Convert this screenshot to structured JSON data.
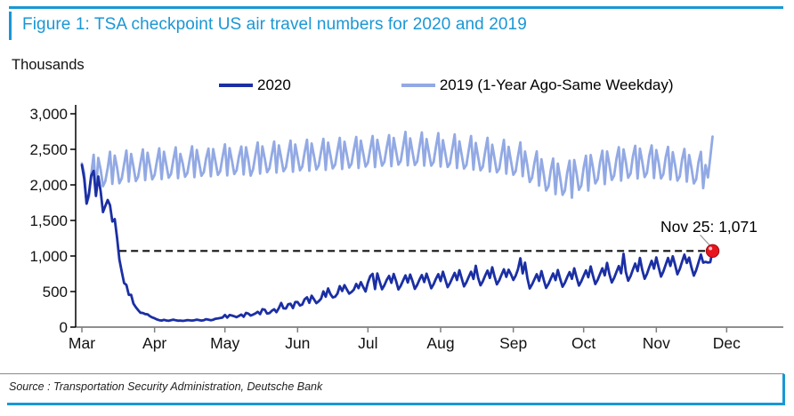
{
  "figure": {
    "title": "Figure 1: TSA checkpoint US air travel numbers for 2020 and 2019",
    "units_label": "Thousands",
    "source": "Source : Transportation Security Administration, Deutsche Bank",
    "accent_color": "#1a97d5"
  },
  "chart_data": {
    "type": "line",
    "title": "Figure 1: TSA checkpoint US air travel numbers for 2020 and 2019",
    "ylabel": "Thousands",
    "ylim": [
      0,
      3000
    ],
    "grid": false,
    "legend_position": "top",
    "y_ticks": [
      "0",
      "500",
      "1,000",
      "1,500",
      "2,000",
      "2,500",
      "3,000"
    ],
    "y_tick_values": [
      0,
      500,
      1000,
      1500,
      2000,
      2500,
      3000
    ],
    "categories": [
      "Mar",
      "Apr",
      "May",
      "Jun",
      "Jul",
      "Aug",
      "Sep",
      "Oct",
      "Nov",
      "Dec"
    ],
    "x_tick_days": [
      0,
      31,
      61,
      92,
      122,
      153,
      184,
      214,
      245,
      275
    ],
    "x_unit": "days since Mar 1, 2020 (daily values, thousands of passengers)",
    "series": [
      {
        "name": "2020",
        "color": "#1b2fa4",
        "values": [
          2280,
          2089,
          1736,
          1877,
          2130,
          2198,
          1844,
          2119,
          1909,
          1617,
          1702,
          1788,
          1714,
          1485,
          1519,
          1257,
          953,
          779,
          620,
          593,
          454,
          455,
          331,
          280,
          239,
          203,
          199,
          184,
          180,
          154,
          136,
          124,
          107,
          97,
          92,
          102,
          94,
          89,
          97,
          105,
          96,
          90,
          93,
          88,
          92,
          99,
          95,
          92,
          97,
          105,
          99,
          92,
          98,
          111,
          105,
          98,
          104,
          117,
          123,
          128,
          135,
          171,
          134,
          170,
          163,
          152,
          140,
          157,
          176,
          145,
          200,
          190,
          163,
          176,
          193,
          215,
          183,
          253,
          244,
          190,
          196,
          230,
          251,
          210,
          267,
          340,
          264,
          261,
          321,
          327,
          268,
          352,
          353,
          304,
          318,
          391,
          419,
          341,
          441,
          390,
          338,
          362,
          399,
          502,
          427,
          544,
          465,
          417,
          428,
          471,
          576,
          507,
          590,
          530,
          471,
          494,
          526,
          607,
          548,
          633,
          561,
          501,
          626,
          718,
          749,
          535,
          755,
          640,
          532,
          588,
          663,
          720,
          623,
          747,
          646,
          530,
          581,
          658,
          727,
          627,
          739,
          648,
          537,
          594,
          669,
          732,
          634,
          751,
          655,
          546,
          603,
          679,
          745,
          648,
          779,
          668,
          561,
          617,
          693,
          762,
          661,
          800,
          684,
          573,
          631,
          708,
          779,
          678,
          863,
          695,
          587,
          644,
          723,
          795,
          691,
          841,
          711,
          601,
          659,
          739,
          813,
          706,
          808,
          744,
          664,
          722,
          812,
          968,
          755,
          906,
          689,
          544,
          599,
          673,
          744,
          650,
          788,
          663,
          551,
          607,
          683,
          755,
          661,
          803,
          679,
          567,
          624,
          701,
          774,
          679,
          826,
          698,
          584,
          643,
          722,
          798,
          701,
          852,
          721,
          605,
          666,
          748,
          827,
          727,
          902,
          747,
          628,
          691,
          777,
          859,
          757,
          1031,
          775,
          653,
          718,
          808,
          894,
          788,
          973,
          806,
          680,
          748,
          842,
          932,
          823,
          980,
          840,
          710,
          781,
          879,
          973,
          860,
          996,
          878,
          743,
          818,
          921,
          1019,
          903,
          978,
          840,
          724,
          801,
          908,
          1020,
          906,
          917,
          907,
          912,
          1071
        ]
      },
      {
        "name": "2019 (1-Year Ago-Same Weekday)",
        "color": "#92a9e4",
        "values": [
          2301,
          2162,
          1736,
          1834,
          2148,
          2424,
          1902,
          2380,
          2212,
          1980,
          2052,
          2236,
          2466,
          2014,
          2413,
          2246,
          2022,
          2093,
          2287,
          2482,
          2046,
          2436,
          2258,
          2054,
          2116,
          2311,
          2499,
          2067,
          2452,
          2273,
          2078,
          2140,
          2336,
          2514,
          2081,
          2466,
          2286,
          2101,
          2153,
          2350,
          2528,
          2094,
          2436,
          2300,
          2114,
          2167,
          2364,
          2543,
          2107,
          2491,
          2313,
          2127,
          2180,
          2378,
          2510,
          2120,
          2504,
          2326,
          2140,
          2193,
          2391,
          2570,
          2133,
          2517,
          2339,
          2153,
          2206,
          2404,
          2540,
          2146,
          2530,
          2352,
          2130,
          2219,
          2417,
          2596,
          2159,
          2543,
          2365,
          2179,
          2232,
          2430,
          2609,
          2172,
          2556,
          2378,
          2192,
          2245,
          2443,
          2622,
          2185,
          2569,
          2391,
          2205,
          2258,
          2456,
          2635,
          2198,
          2582,
          2404,
          2218,
          2271,
          2469,
          2648,
          2211,
          2595,
          2417,
          2231,
          2284,
          2482,
          2661,
          2224,
          2608,
          2430,
          2244,
          2297,
          2495,
          2674,
          2237,
          2621,
          2443,
          2257,
          2310,
          2508,
          2687,
          2250,
          2634,
          2456,
          2270,
          2323,
          2521,
          2700,
          2263,
          2660,
          2470,
          2285,
          2335,
          2545,
          2745,
          2275,
          2655,
          2465,
          2280,
          2330,
          2540,
          2738,
          2270,
          2645,
          2455,
          2270,
          2320,
          2530,
          2728,
          2258,
          2630,
          2440,
          2252,
          2302,
          2512,
          2710,
          2238,
          2612,
          2420,
          2230,
          2280,
          2490,
          2688,
          2215,
          2590,
          2396,
          2205,
          2255,
          2465,
          2662,
          2188,
          2565,
          2370,
          2176,
          2226,
          2436,
          2632,
          2158,
          2535,
          2338,
          2142,
          2192,
          2402,
          2598,
          2122,
          2470,
          2270,
          2040,
          2100,
          2310,
          2470,
          1990,
          2360,
          2150,
          1920,
          1980,
          2210,
          2370,
          1870,
          2300,
          2100,
          1860,
          1920,
          2170,
          2340,
          1820,
          2350,
          2160,
          1930,
          1990,
          2240,
          2410,
          1920,
          2420,
          2240,
          2020,
          2080,
          2320,
          2480,
          2010,
          2470,
          2290,
          2070,
          2130,
          2370,
          2530,
          2060,
          2500,
          2320,
          2100,
          2160,
          2400,
          2550,
          2090,
          2510,
          2330,
          2110,
          2170,
          2410,
          2555,
          2095,
          2490,
          2310,
          2090,
          2150,
          2390,
          2535,
          2075,
          2460,
          2280,
          2060,
          2120,
          2360,
          2505,
          2045,
          2420,
          2240,
          2020,
          2080,
          2320,
          2465,
          1955,
          2280,
          2105,
          2380,
          2680
        ]
      }
    ],
    "annotation": {
      "label": "Nov 25: 1,071",
      "day": 269,
      "value": 1071,
      "marker_color": "#e8141e",
      "dashed_line_value": 1071,
      "dashed_line_start_day": 16
    }
  }
}
